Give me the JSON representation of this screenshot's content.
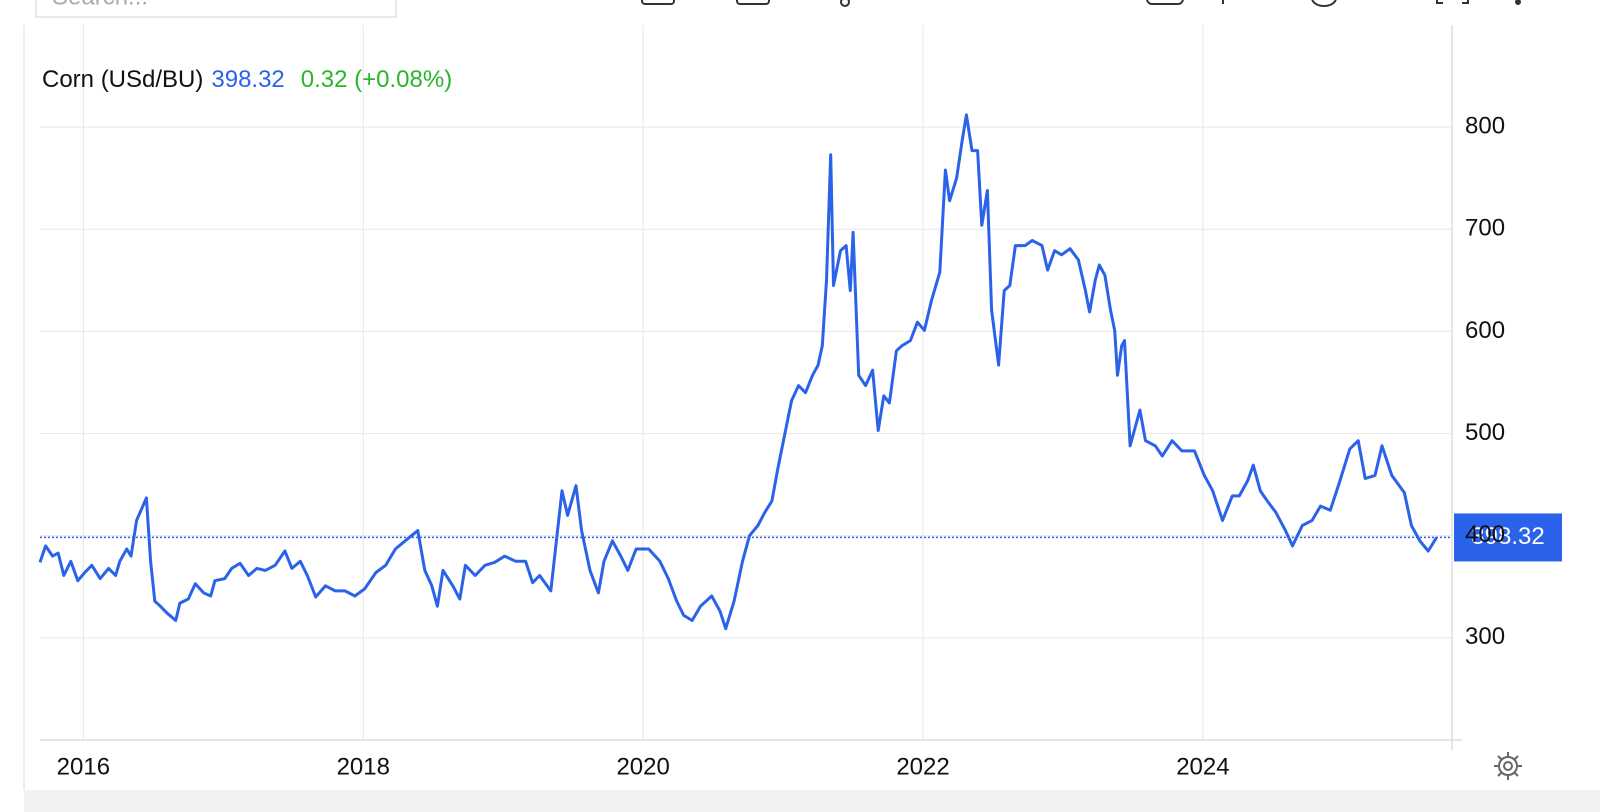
{
  "search_placeholder": "Search...",
  "chart_data": {
    "type": "line",
    "change": "0.32 (+0.08%)",
    "x": [
      2015.69,
      2015.73,
      2015.78,
      2015.82,
      2015.86,
      2015.91,
      2015.96,
      2016.01,
      2016.06,
      2016.12,
      2016.18,
      2016.23,
      2016.26,
      2016.31,
      2016.34,
      2016.38,
      2016.45,
      2016.48,
      2016.51,
      2016.55,
      2016.6,
      2016.66,
      2016.69,
      2016.75,
      2016.8,
      2016.86,
      2016.91,
      2016.94,
      2017.01,
      2017.06,
      2017.12,
      2017.18,
      2017.24,
      2017.3,
      2017.37,
      2017.44,
      2017.49,
      2017.55,
      2017.6,
      2017.66,
      2017.73,
      2017.8,
      2017.87,
      2017.94,
      2018.01,
      2018.09,
      2018.16,
      2018.23,
      2018.3,
      2018.39,
      2018.44,
      2018.49,
      2018.53,
      2018.57,
      2018.64,
      2018.69,
      2018.73,
      2018.8,
      2018.87,
      2018.94,
      2019.01,
      2019.09,
      2019.16,
      2019.21,
      2019.26,
      2019.34,
      2019.38,
      2019.42,
      2019.46,
      2019.52,
      2019.56,
      2019.62,
      2019.68,
      2019.72,
      2019.78,
      2019.84,
      2019.89,
      2019.95,
      2020.04,
      2020.12,
      2020.18,
      2020.24,
      2020.29,
      2020.35,
      2020.41,
      2020.49,
      2020.55,
      2020.59,
      2020.65,
      2020.71,
      2020.76,
      2020.82,
      2020.87,
      2020.92,
      2020.96,
      2021.01,
      2021.06,
      2021.11,
      2021.16,
      2021.21,
      2021.25,
      2021.28,
      2021.31,
      2021.34,
      2021.36,
      2021.41,
      2021.45,
      2021.48,
      2021.5,
      2021.54,
      2021.59,
      2021.64,
      2021.68,
      2021.72,
      2021.76,
      2021.81,
      2021.85,
      2021.91,
      2021.96,
      2022.01,
      2022.06,
      2022.12,
      2022.16,
      2022.19,
      2022.24,
      2022.28,
      2022.31,
      2022.35,
      2022.39,
      2022.42,
      2022.46,
      2022.49,
      2022.54,
      2022.58,
      2022.62,
      2022.66,
      2022.73,
      2022.78,
      2022.85,
      2022.89,
      2022.94,
      2022.99,
      2023.05,
      2023.11,
      2023.16,
      2023.19,
      2023.23,
      2023.26,
      2023.3,
      2023.34,
      2023.37,
      2023.39,
      2023.42,
      2023.44,
      2023.48,
      2023.51,
      2023.55,
      2023.59,
      2023.66,
      2023.71,
      2023.78,
      2023.85,
      2023.94,
      2024.01,
      2024.07,
      2024.14,
      2024.21,
      2024.26,
      2024.32,
      2024.36,
      2024.41,
      2024.46,
      2024.52,
      2024.59,
      2024.64,
      2024.71,
      2024.78,
      2024.84,
      2024.91,
      2024.98,
      2025.05,
      2025.11,
      2025.16,
      2025.23,
      2025.28,
      2025.35,
      2025.44,
      2025.49,
      2025.55,
      2025.61,
      2025.67
    ],
    "series": [
      {
        "name": "Corn (USd/BU)",
        "color": "#2a62ea",
        "values": [
          374,
          390,
          380,
          383,
          361,
          375,
          356,
          364,
          371,
          358,
          368,
          361,
          375,
          387,
          380,
          415,
          437,
          375,
          336,
          331,
          324,
          317,
          334,
          338,
          353,
          344,
          341,
          356,
          358,
          368,
          373,
          361,
          368,
          366,
          371,
          385,
          368,
          375,
          361,
          340,
          351,
          346,
          346,
          341,
          348,
          364,
          371,
          387,
          395,
          405,
          366,
          351,
          331,
          366,
          351,
          338,
          371,
          361,
          371,
          374,
          380,
          375,
          375,
          354,
          361,
          346,
          395,
          444,
          420,
          449,
          405,
          366,
          344,
          375,
          395,
          380,
          366,
          387,
          387,
          375,
          358,
          336,
          322,
          317,
          331,
          341,
          326,
          309,
          336,
          375,
          400,
          410,
          423,
          434,
          464,
          498,
          532,
          547,
          540,
          557,
          567,
          586,
          650,
          773,
          645,
          679,
          684,
          640,
          697,
          557,
          547,
          562,
          503,
          537,
          530,
          581,
          586,
          591,
          609,
          601,
          630,
          658,
          758,
          728,
          750,
          787,
          812,
          777,
          777,
          704,
          738,
          621,
          567,
          640,
          645,
          684,
          684,
          689,
          684,
          660,
          679,
          675,
          681,
          670,
          640,
          619,
          650,
          665,
          655,
          621,
          601,
          557,
          586,
          591,
          488,
          503,
          523,
          493,
          488,
          478,
          493,
          483,
          483,
          459,
          444,
          415,
          439,
          439,
          454,
          469,
          444,
          434,
          423,
          405,
          390,
          410,
          415,
          429,
          425,
          454,
          485,
          493,
          456,
          459,
          488,
          459,
          442,
          410,
          395,
          385,
          398.32
        ]
      }
    ],
    "change_color": "#2bb52b",
    "xlim": [
      2015.69,
      2025.78
    ],
    "xticks": [
      2016,
      2018,
      2020,
      2022,
      2024
    ],
    "ylim": [
      200,
      900
    ],
    "yticks": [
      300,
      400,
      500,
      600,
      700,
      800
    ],
    "grid": true
  }
}
